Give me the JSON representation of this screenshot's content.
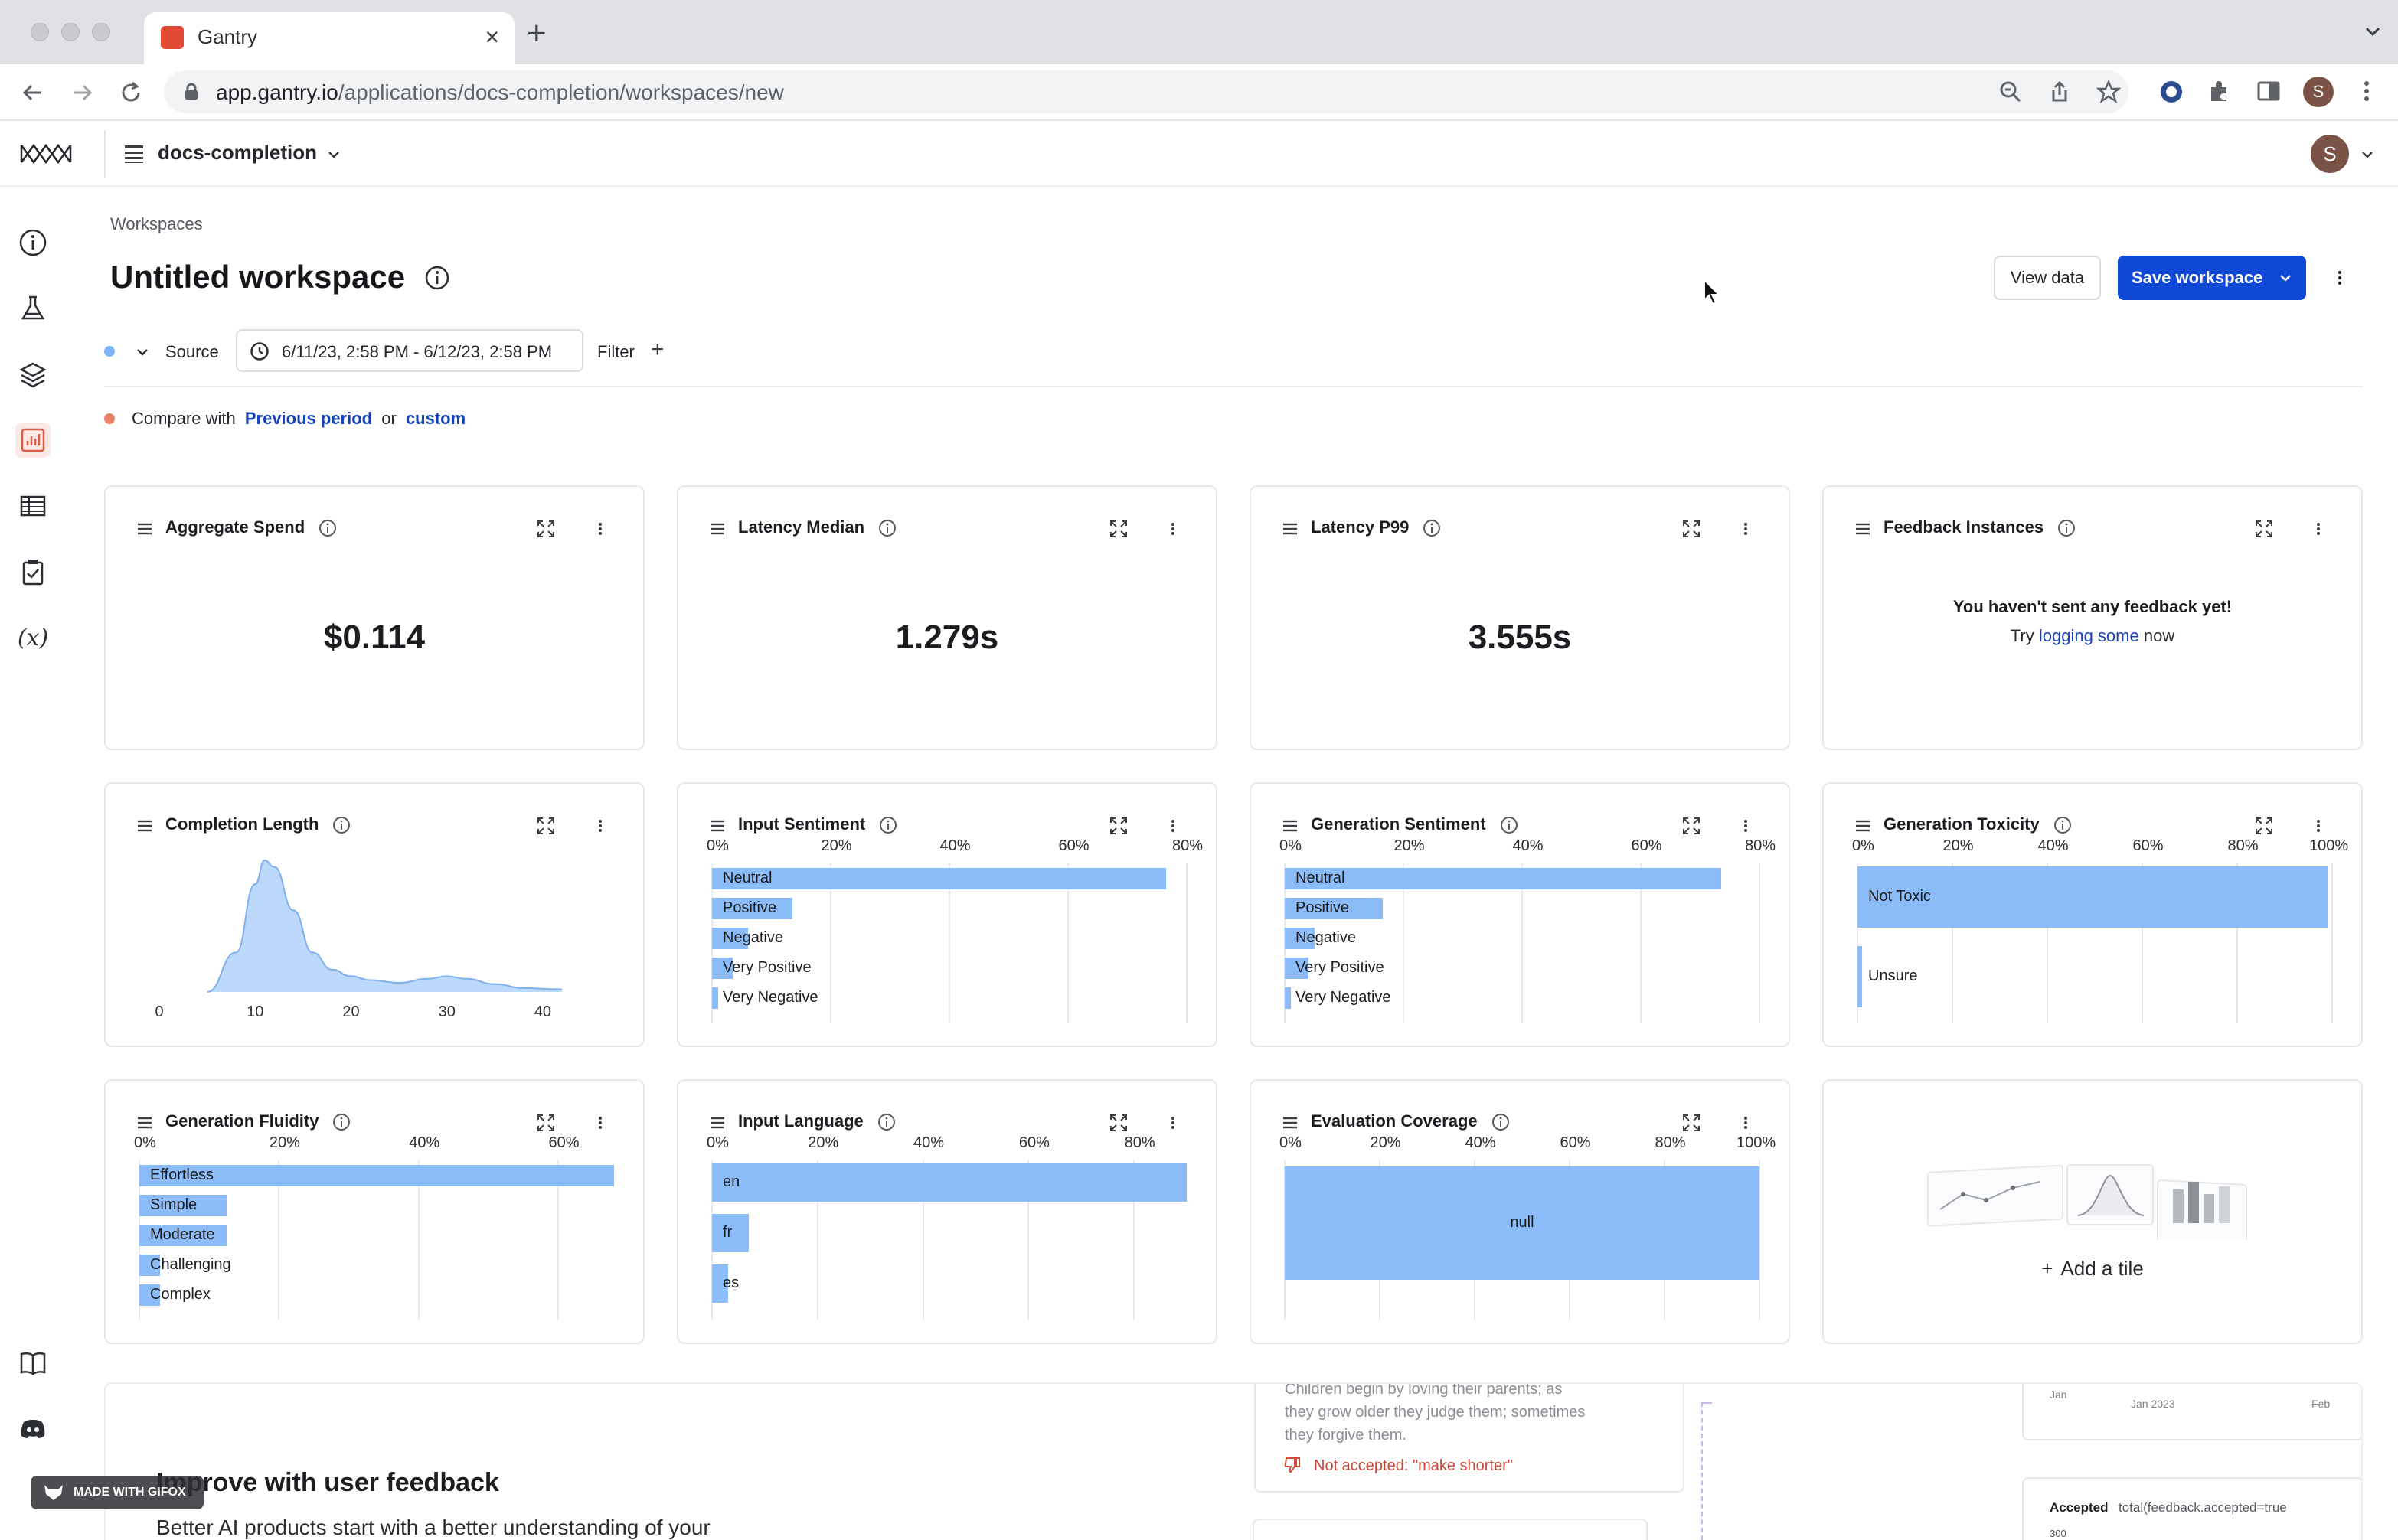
{
  "browser": {
    "tab_title": "Gantry",
    "url_host": "app.gantry.io",
    "url_path": "/applications/docs-completion/workspaces/new",
    "profile_initial": "S"
  },
  "app": {
    "name": "docs-completion",
    "user_initial": "S"
  },
  "page": {
    "breadcrumb": "Workspaces",
    "title": "Untitled workspace",
    "view_data": "View data",
    "save_workspace": "Save workspace",
    "source_label": "Source",
    "date_range": "6/11/23, 2:58 PM - 6/12/23, 2:58 PM",
    "filter_label": "Filter",
    "compare_prefix": "Compare with",
    "compare_previous": "Previous period",
    "compare_or": "or",
    "compare_custom": "custom"
  },
  "tiles": {
    "aggregate_spend": {
      "title": "Aggregate Spend",
      "value": "$0.114"
    },
    "latency_median": {
      "title": "Latency Median",
      "value": "1.279s"
    },
    "latency_p99": {
      "title": "Latency P99",
      "value": "3.555s"
    },
    "feedback": {
      "title": "Feedback Instances",
      "line1": "You haven't sent any feedback yet!",
      "try": "Try",
      "link": "logging some",
      "now": "now"
    },
    "completion_length": {
      "title": "Completion Length"
    },
    "input_sentiment": {
      "title": "Input Sentiment"
    },
    "generation_sentiment": {
      "title": "Generation Sentiment"
    },
    "generation_toxicity": {
      "title": "Generation Toxicity"
    },
    "generation_fluidity": {
      "title": "Generation Fluidity"
    },
    "input_language": {
      "title": "Input Language"
    },
    "evaluation_coverage": {
      "title": "Evaluation Coverage"
    },
    "add_tile": {
      "label": "Add a tile"
    }
  },
  "chart_data": [
    {
      "type": "area",
      "title": "Completion Length",
      "x_ticks": [
        "0",
        "10",
        "20",
        "30",
        "40"
      ],
      "x": [
        5,
        8,
        10,
        11,
        12,
        14,
        16,
        18,
        20,
        22,
        25,
        28,
        30,
        32,
        35,
        38,
        42
      ],
      "y": [
        0.0,
        0.3,
        0.82,
        1.0,
        0.95,
        0.62,
        0.3,
        0.17,
        0.12,
        0.09,
        0.07,
        0.1,
        0.12,
        0.1,
        0.06,
        0.03,
        0.02
      ],
      "ylim": [
        0,
        1
      ],
      "xlim": [
        0,
        42
      ]
    },
    {
      "type": "bar",
      "title": "Input Sentiment",
      "orientation": "horizontal",
      "x_ticks": [
        "0%",
        "20%",
        "40%",
        "60%",
        "80%"
      ],
      "xlim": [
        0,
        0.8
      ],
      "categories": [
        "Neutral",
        "Positive",
        "Negative",
        "Very Positive",
        "Very Negative"
      ],
      "values": [
        0.765,
        0.135,
        0.06,
        0.035,
        0.01
      ]
    },
    {
      "type": "bar",
      "title": "Generation Sentiment",
      "orientation": "horizontal",
      "x_ticks": [
        "0%",
        "20%",
        "40%",
        "60%",
        "80%"
      ],
      "xlim": [
        0,
        0.8
      ],
      "categories": [
        "Neutral",
        "Positive",
        "Negative",
        "Very Positive",
        "Very Negative"
      ],
      "values": [
        0.735,
        0.165,
        0.05,
        0.04,
        0.01
      ]
    },
    {
      "type": "bar",
      "title": "Generation Toxicity",
      "orientation": "horizontal",
      "x_ticks": [
        "0%",
        "20%",
        "40%",
        "60%",
        "80%",
        "100%"
      ],
      "xlim": [
        0,
        1.0
      ],
      "categories": [
        "Not Toxic",
        "Unsure"
      ],
      "values": [
        0.99,
        0.01
      ]
    },
    {
      "type": "bar",
      "title": "Generation Fluidity",
      "orientation": "horizontal",
      "x_ticks": [
        "0%",
        "20%",
        "40%",
        "60%"
      ],
      "xlim": [
        0,
        0.68
      ],
      "categories": [
        "Effortless",
        "Simple",
        "Moderate",
        "Challenging",
        "Complex"
      ],
      "values": [
        0.68,
        0.125,
        0.125,
        0.03,
        0.03
      ]
    },
    {
      "type": "bar",
      "title": "Input Language",
      "orientation": "horizontal",
      "x_ticks": [
        "0%",
        "20%",
        "40%",
        "60%",
        "80%"
      ],
      "xlim": [
        0,
        0.9
      ],
      "categories": [
        "en",
        "fr",
        "es"
      ],
      "values": [
        0.9,
        0.07,
        0.03
      ]
    },
    {
      "type": "bar",
      "title": "Evaluation Coverage",
      "orientation": "horizontal",
      "x_ticks": [
        "0%",
        "20%",
        "40%",
        "60%",
        "80%",
        "100%"
      ],
      "xlim": [
        0,
        1.0
      ],
      "categories": [
        "null"
      ],
      "values": [
        1.0
      ]
    }
  ],
  "promo": {
    "heading": "Improve with user feedback",
    "body": "Better AI products start with a better understanding of your",
    "quote_line1": "Children begin by loving their parents; as",
    "quote_line2": "they grow older they judge them; sometimes",
    "quote_line3": "they forgive them.",
    "not_accepted": "Not accepted: \"make shorter\"",
    "axis_jan": "Jan",
    "axis_jan2023": "Jan 2023",
    "axis_feb": "Feb",
    "accepted_label": "Accepted",
    "accepted_query": "total(feedback.accepted=true",
    "axis_300": "300"
  },
  "watermark": "MADE WITH GIFOX",
  "colors": {
    "primary": "#1049d6",
    "bar": "#8bbcf8",
    "link": "#1843b8",
    "source_dot": "#7fb3f5",
    "compare_dot": "#e8806a"
  }
}
